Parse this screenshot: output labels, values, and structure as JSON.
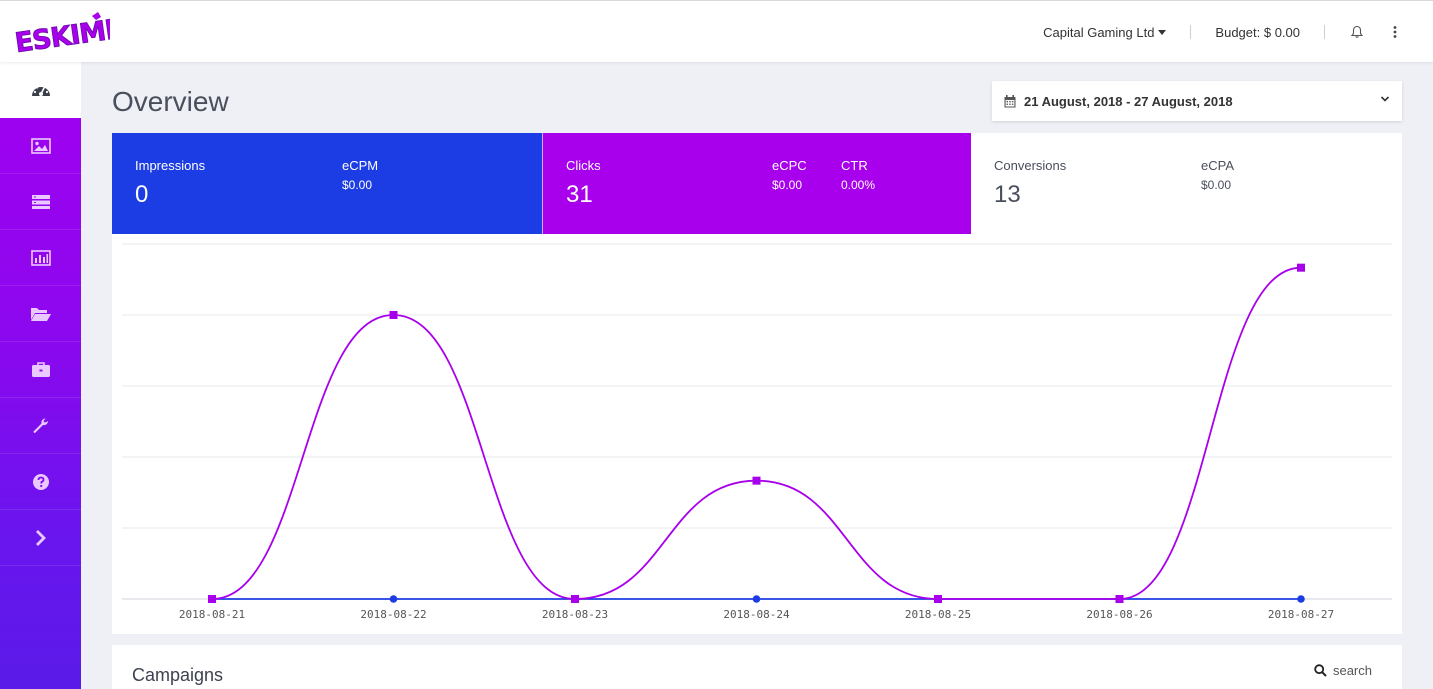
{
  "brand": {
    "logo_text": "ESKIMI",
    "primary": "#a800ec",
    "blue": "#1c3de3"
  },
  "header": {
    "account_name": "Capital Gaming Ltd",
    "budget": "Budget: $ 0.00",
    "icons": [
      "bell-icon",
      "more-vertical-icon"
    ]
  },
  "sidebar": {
    "items": [
      {
        "icon": "dashboard-gauge-icon",
        "active": true
      },
      {
        "icon": "image-icon"
      },
      {
        "icon": "server-list-icon"
      },
      {
        "icon": "bar-chart-icon"
      },
      {
        "icon": "folder-open-icon"
      },
      {
        "icon": "briefcase-icon"
      },
      {
        "icon": "wrench-icon"
      },
      {
        "icon": "help-circle-icon"
      },
      {
        "icon": "chevron-right-icon"
      }
    ]
  },
  "page": {
    "title": "Overview"
  },
  "date_range": {
    "value": "21 August, 2018 - 27 August, 2018"
  },
  "stats": {
    "impressions": {
      "label": "Impressions",
      "value": "0",
      "ecpm_label": "eCPM",
      "ecpm": "$0.00"
    },
    "clicks": {
      "label": "Clicks",
      "value": "31",
      "ecpc_label": "eCPC",
      "ecpc": "$0.00",
      "ctr_label": "CTR",
      "ctr": "0.00%"
    },
    "conversions": {
      "label": "Conversions",
      "value": "13",
      "ecpa_label": "eCPA",
      "ecpa": "$0.00"
    }
  },
  "chart_data": {
    "type": "line",
    "categories": [
      "2018-08-21",
      "2018-08-22",
      "2018-08-23",
      "2018-08-24",
      "2018-08-25",
      "2018-08-26",
      "2018-08-27"
    ],
    "series": [
      {
        "values": [
          0,
          12,
          0,
          5,
          0,
          0,
          14
        ],
        "color": "#a800ec",
        "marker": "square"
      },
      {
        "values": [
          0,
          0,
          0,
          0,
          0,
          0,
          0
        ],
        "color": "#1c3de3",
        "marker": "circle"
      }
    ],
    "ylim": [
      0,
      15
    ],
    "grid": true,
    "smooth": true
  },
  "campaigns": {
    "title": "Campaigns",
    "search_placeholder": "search"
  }
}
